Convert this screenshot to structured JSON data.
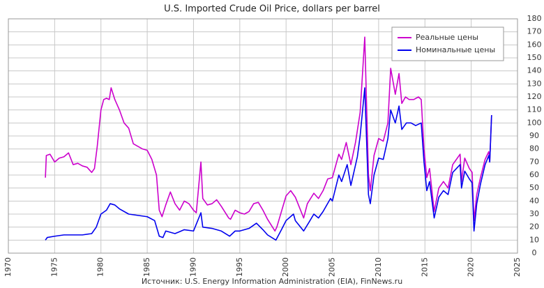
{
  "chart_data": {
    "type": "line",
    "title": "U.S. Imported Crude Oil Price, dollars per barrel",
    "source": "Источник: U.S. Energy Information Administration (EIA), FinNews.ru",
    "xlim": [
      1970,
      2025
    ],
    "xticks": [
      1970,
      1975,
      1980,
      1985,
      1990,
      1995,
      2000,
      2005,
      2010,
      2015,
      2020,
      2025
    ],
    "ylim": [
      0,
      180
    ],
    "yticks": [
      0,
      10,
      20,
      30,
      40,
      50,
      60,
      70,
      80,
      90,
      100,
      110,
      120,
      130,
      140,
      150,
      160,
      170,
      180
    ],
    "grid": true,
    "legend": "upper right",
    "series": [
      {
        "name": "Реальные цены",
        "color": "#cc00cc",
        "x": [
          1974.0,
          1974.1,
          1974.5,
          1975,
          1975.5,
          1976,
          1976.5,
          1977,
          1977.5,
          1978,
          1978.5,
          1979,
          1979.3,
          1979.6,
          1980,
          1980.3,
          1980.6,
          1980.9,
          1981.1,
          1981.5,
          1982,
          1982.5,
          1983,
          1983.5,
          1984,
          1984.5,
          1985,
          1985.5,
          1986,
          1986.3,
          1986.6,
          1987,
          1987.5,
          1988,
          1988.5,
          1989,
          1989.5,
          1990,
          1990.3,
          1990.8,
          1991,
          1991.5,
          1992,
          1992.5,
          1993,
          1993.8,
          1994,
          1994.5,
          1995,
          1995.5,
          1996,
          1996.5,
          1997,
          1997.5,
          1998,
          1998.8,
          1999,
          1999.5,
          2000,
          2000.5,
          2001,
          2001.9,
          2002.3,
          2003,
          2003.5,
          2004,
          2004.5,
          2005,
          2005.7,
          2006,
          2006.5,
          2007,
          2007.5,
          2008,
          2008.5,
          2008.9,
          2009.1,
          2009.5,
          2010,
          2010.5,
          2011,
          2011.3,
          2011.8,
          2012.2,
          2012.5,
          2012.9,
          2013.3,
          2013.8,
          2014.3,
          2014.6,
          2014.9,
          2015.2,
          2015.5,
          2016.0,
          2016.5,
          2017,
          2017.5,
          2018,
          2018.8,
          2018.95,
          2019.3,
          2019.8,
          2020.1,
          2020.3,
          2020.6,
          2021,
          2021.5,
          2021.9,
          2022.0,
          2022.2
        ],
        "values": [
          58,
          75,
          76,
          70,
          73,
          74,
          77,
          68,
          69,
          67,
          66,
          62,
          65,
          82,
          110,
          118,
          119,
          118,
          127,
          118,
          110,
          100,
          96,
          84,
          82,
          80,
          79,
          72,
          60,
          33,
          28,
          37,
          47,
          38,
          33,
          40,
          38,
          33,
          31,
          70,
          42,
          37,
          38,
          41,
          36,
          27,
          26,
          33,
          31,
          30,
          32,
          38,
          39,
          33,
          26,
          17,
          20,
          32,
          44,
          48,
          43,
          27,
          38,
          46,
          42,
          48,
          57,
          58,
          76,
          72,
          85,
          68,
          85,
          108,
          166,
          60,
          48,
          75,
          88,
          86,
          100,
          142,
          122,
          138,
          115,
          120,
          118,
          118,
          120,
          118,
          80,
          58,
          65,
          32,
          50,
          55,
          50,
          68,
          76,
          55,
          73,
          65,
          62,
          25,
          45,
          58,
          72,
          78,
          70,
          106
        ]
      },
      {
        "name": "Номинальные цены",
        "color": "#0000ee",
        "x": [
          1974,
          1974.2,
          1975,
          1976,
          1977,
          1978,
          1979,
          1979.5,
          1980,
          1980.6,
          1981,
          1981.5,
          1982,
          1983,
          1984,
          1985,
          1985.8,
          1986.3,
          1986.7,
          1987,
          1988,
          1989,
          1990,
          1990.8,
          1991,
          1992,
          1993,
          1993.9,
          1994.5,
          1995,
          1996,
          1996.8,
          1997.5,
          1998,
          1998.9,
          1999.5,
          2000,
          2000.8,
          2001,
          2001.9,
          2002.5,
          2003,
          2003.5,
          2004,
          2004.8,
          2005,
          2005.7,
          2006,
          2006.6,
          2007,
          2007.7,
          2008,
          2008.5,
          2008.9,
          2009.1,
          2009.5,
          2010,
          2010.5,
          2011,
          2011.3,
          2011.8,
          2012.2,
          2012.5,
          2013,
          2013.5,
          2014,
          2014.6,
          2014.9,
          2015.2,
          2015.5,
          2016,
          2016.5,
          2017,
          2017.5,
          2018,
          2018.8,
          2018.95,
          2019.3,
          2019.8,
          2020.1,
          2020.3,
          2020.6,
          2021,
          2021.5,
          2021.9,
          2022.0,
          2022.2
        ],
        "values": [
          10,
          12,
          13,
          14,
          14,
          14,
          15,
          20,
          30,
          33,
          38,
          37,
          34,
          30,
          29,
          28,
          25,
          13,
          12,
          17,
          15,
          18,
          17,
          31,
          20,
          19,
          17,
          13,
          17,
          17,
          19,
          23,
          18,
          14,
          10,
          18,
          25,
          30,
          25,
          17,
          24,
          30,
          27,
          32,
          42,
          40,
          60,
          55,
          68,
          52,
          74,
          90,
          127,
          45,
          38,
          60,
          73,
          72,
          88,
          110,
          100,
          113,
          95,
          100,
          100,
          98,
          100,
          70,
          48,
          55,
          27,
          43,
          48,
          45,
          62,
          68,
          50,
          63,
          57,
          54,
          17,
          38,
          53,
          68,
          75,
          70,
          106
        ]
      }
    ]
  }
}
